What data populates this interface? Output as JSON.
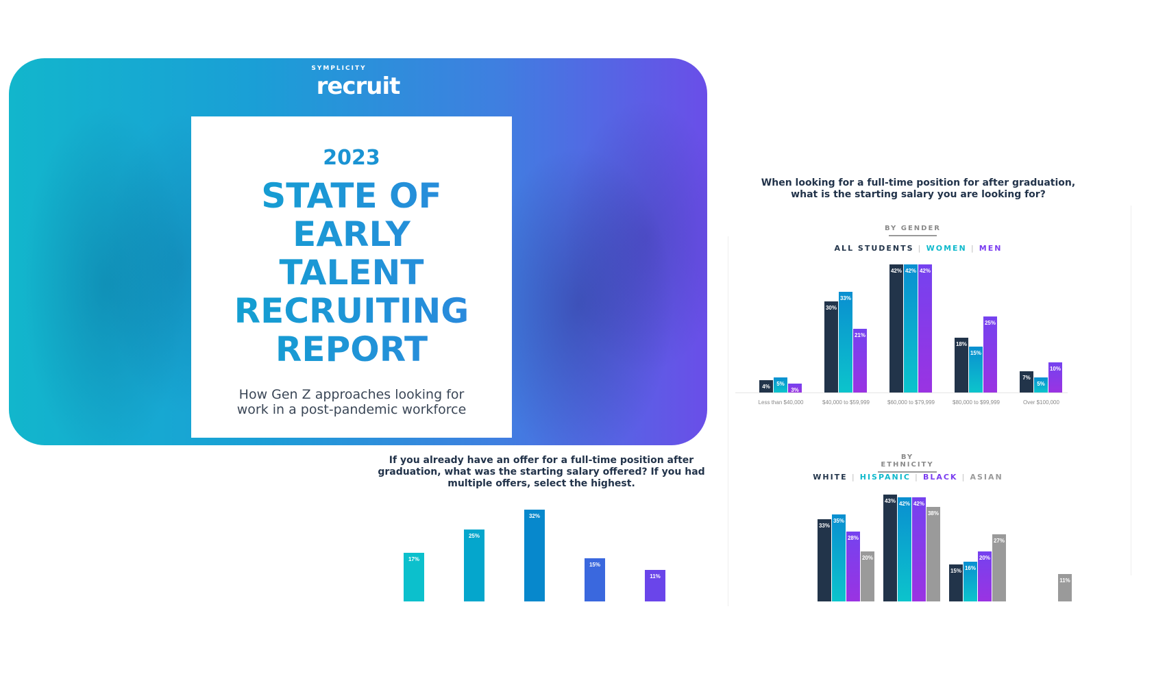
{
  "cover": {
    "brand_small": "SYMPLICITY",
    "brand": "recruit",
    "year": "2023",
    "title_lines": [
      "STATE OF",
      "EARLY",
      "TALENT",
      "RECRUITING",
      "REPORT"
    ],
    "subtitle_lines": [
      "How Gen Z approaches looking for",
      "work in a post-pandemic workforce"
    ]
  },
  "chart_data": [
    {
      "type": "bar",
      "title": "When looking for a full-time position for after graduation, what is the starting salary you are looking for?",
      "section": "BY GENDER",
      "categories": [
        "Less than $40,000",
        "$40,000 to $59,999",
        "$60,000 to $79,999",
        "$80,000 to $99,999",
        "Over $100,000"
      ],
      "series": [
        {
          "name": "ALL STUDENTS",
          "color": "#22344a",
          "values": [
            4,
            30,
            42,
            18,
            7
          ]
        },
        {
          "name": "WOMEN",
          "color": "#0fb9cc",
          "values": [
            5,
            33,
            42,
            15,
            5
          ]
        },
        {
          "name": "MEN",
          "color": "#7b3ff0",
          "values": [
            3,
            21,
            42,
            25,
            10
          ]
        }
      ],
      "unit": "%",
      "legend": "top-center"
    },
    {
      "type": "bar",
      "section": "BY ETHNICITY",
      "categories": [
        "",
        "",
        "",
        ""
      ],
      "series": [
        {
          "name": "WHITE",
          "color": "#22344a",
          "values": [
            33,
            43,
            15,
            null
          ]
        },
        {
          "name": "HISPANIC",
          "color": "#0fb9cc",
          "values": [
            35,
            42,
            16,
            null
          ]
        },
        {
          "name": "BLACK",
          "color": "#7b3ff0",
          "values": [
            28,
            42,
            20,
            null
          ]
        },
        {
          "name": "ASIAN",
          "color": "#9a9a9a",
          "values": [
            20,
            38,
            27,
            11
          ]
        }
      ],
      "unit": "%",
      "legend": "top-center"
    },
    {
      "type": "bar",
      "title": "If you already have an offer for a full-time position after graduation, what was the starting salary offered? If you had multiple offers, select the highest.",
      "title_lines": [
        "If you already have an offer for a full-time position after",
        "graduation, what was the starting salary offered? If you had",
        "multiple offers, select the highest."
      ],
      "categories": [
        "",
        "",
        "",
        "",
        ""
      ],
      "values": [
        17,
        25,
        32,
        15,
        11
      ],
      "colors": [
        "#0cc0cc",
        "#05a6cc",
        "#0788cc",
        "#3a68de",
        "#6a45ea"
      ],
      "unit": "%"
    }
  ],
  "q1_lines": [
    "When looking for a full-time position for after graduation,",
    "what is the starting salary you are looking for?"
  ]
}
